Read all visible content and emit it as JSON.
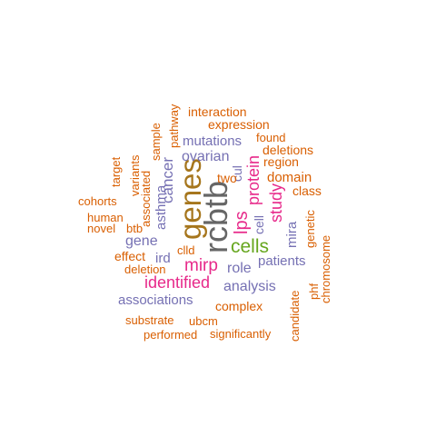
{
  "palette": {
    "orange": "#d95f02",
    "purple": "#7570b3",
    "magenta": "#e7298a",
    "green": "#66a61e",
    "gold": "#a6761d",
    "gray": "#666666"
  },
  "words": [
    {
      "text": "rcbtb",
      "color": "gray"
    },
    {
      "text": "genes",
      "color": "gold"
    },
    {
      "text": "cells",
      "color": "green"
    },
    {
      "text": "identified",
      "color": "magenta"
    },
    {
      "text": "mirp",
      "color": "magenta"
    },
    {
      "text": "lps",
      "color": "magenta"
    },
    {
      "text": "protein",
      "color": "magenta"
    },
    {
      "text": "study",
      "color": "magenta"
    },
    {
      "text": "cancer",
      "color": "purple"
    },
    {
      "text": "ovarian",
      "color": "purple"
    },
    {
      "text": "mutations",
      "color": "purple"
    },
    {
      "text": "asthma",
      "color": "purple"
    },
    {
      "text": "gene",
      "color": "purple"
    },
    {
      "text": "ird",
      "color": "purple"
    },
    {
      "text": "role",
      "color": "purple"
    },
    {
      "text": "patients",
      "color": "purple"
    },
    {
      "text": "analysis",
      "color": "purple"
    },
    {
      "text": "associations",
      "color": "purple"
    },
    {
      "text": "cul",
      "color": "purple"
    },
    {
      "text": "cell",
      "color": "purple"
    },
    {
      "text": "mira",
      "color": "purple"
    },
    {
      "text": "interaction",
      "color": "orange"
    },
    {
      "text": "expression",
      "color": "orange"
    },
    {
      "text": "found",
      "color": "orange"
    },
    {
      "text": "deletions",
      "color": "orange"
    },
    {
      "text": "region",
      "color": "orange"
    },
    {
      "text": "domain",
      "color": "orange"
    },
    {
      "text": "class",
      "color": "orange"
    },
    {
      "text": "two",
      "color": "orange"
    },
    {
      "text": "pathway",
      "color": "orange"
    },
    {
      "text": "sample",
      "color": "orange"
    },
    {
      "text": "variants",
      "color": "orange"
    },
    {
      "text": "associated",
      "color": "orange"
    },
    {
      "text": "target",
      "color": "orange"
    },
    {
      "text": "cohorts",
      "color": "orange"
    },
    {
      "text": "human",
      "color": "orange"
    },
    {
      "text": "novel",
      "color": "orange"
    },
    {
      "text": "btb",
      "color": "orange"
    },
    {
      "text": "clld",
      "color": "orange"
    },
    {
      "text": "effect",
      "color": "orange"
    },
    {
      "text": "deletion",
      "color": "orange"
    },
    {
      "text": "genetic",
      "color": "orange"
    },
    {
      "text": "chromosome",
      "color": "orange"
    },
    {
      "text": "phf",
      "color": "orange"
    },
    {
      "text": "candidate",
      "color": "orange"
    },
    {
      "text": "complex",
      "color": "orange"
    },
    {
      "text": "substrate",
      "color": "orange"
    },
    {
      "text": "ubcm",
      "color": "orange"
    },
    {
      "text": "performed",
      "color": "orange"
    },
    {
      "text": "significantly",
      "color": "orange"
    }
  ]
}
